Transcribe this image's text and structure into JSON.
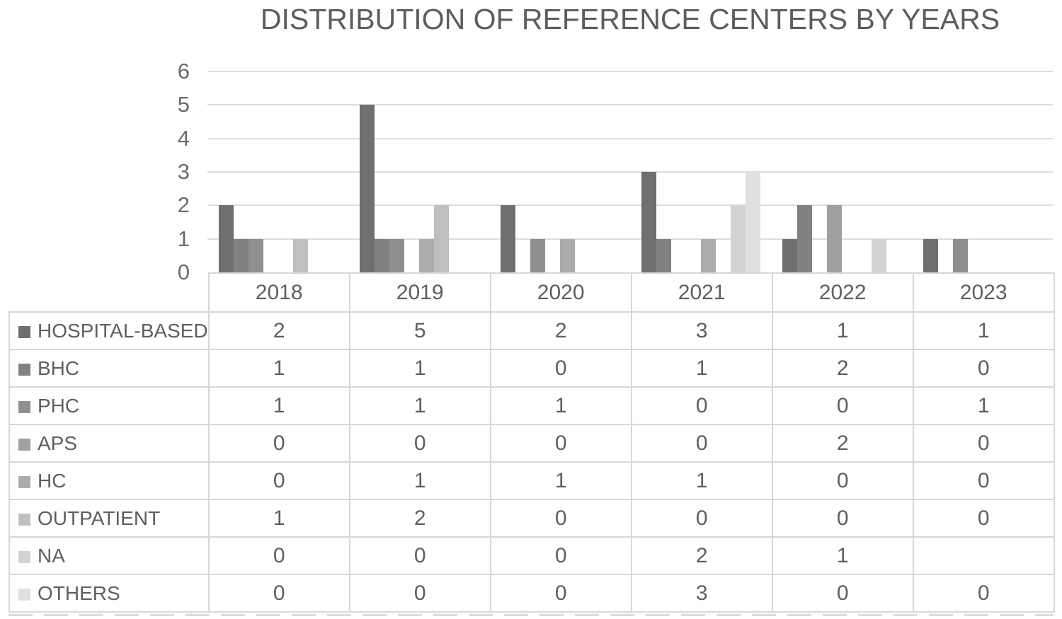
{
  "chart_data": {
    "type": "bar",
    "title": "DISTRIBUTION OF REFERENCE CENTERS BY YEARS",
    "categories": [
      "2018",
      "2019",
      "2020",
      "2021",
      "2022",
      "2023"
    ],
    "series": [
      {
        "name": "HOSPITAL-BASED",
        "color": "#6f6f6f",
        "values": [
          2,
          5,
          2,
          3,
          1,
          1
        ]
      },
      {
        "name": "BHC",
        "color": "#818181",
        "values": [
          1,
          1,
          0,
          1,
          2,
          0
        ]
      },
      {
        "name": "PHC",
        "color": "#8f8f8f",
        "values": [
          1,
          1,
          1,
          0,
          0,
          1
        ]
      },
      {
        "name": "APS",
        "color": "#a0a0a0",
        "values": [
          0,
          0,
          0,
          0,
          2,
          0
        ]
      },
      {
        "name": "HC",
        "color": "#acacac",
        "values": [
          0,
          1,
          1,
          1,
          0,
          0
        ]
      },
      {
        "name": "OUTPATIENT",
        "color": "#bfbfbf",
        "values": [
          1,
          2,
          0,
          0,
          0,
          0
        ]
      },
      {
        "name": "NA",
        "color": "#d2d2d2",
        "values": [
          0,
          0,
          0,
          2,
          1,
          null
        ]
      },
      {
        "name": "OTHERS",
        "color": "#e0e0e0",
        "values": [
          0,
          0,
          0,
          3,
          0,
          0
        ]
      }
    ],
    "yticks": [
      0,
      1,
      2,
      3,
      4,
      5,
      6
    ],
    "ylim": [
      0,
      6
    ],
    "grid": true,
    "legend_position": "data-table-left-column",
    "data_table": true,
    "gridline_color": "#dddddd",
    "table_border_color": "#d7d7d7",
    "text_color": "#5f5f5f"
  }
}
